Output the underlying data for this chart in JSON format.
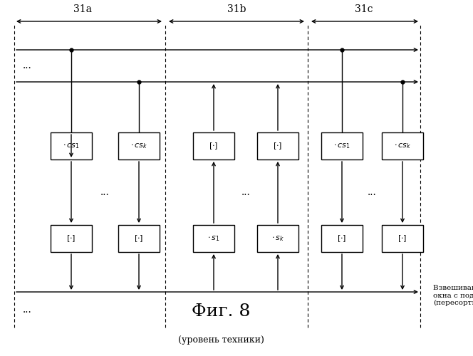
{
  "title": "Фиг. 8",
  "subtitle": "(уровень техники)",
  "annotation": "Взвешивание функцией\nокна с поднятием\n(пересортировано)",
  "section_labels": [
    "31a",
    "31b",
    "31c"
  ],
  "background": "#ffffff"
}
